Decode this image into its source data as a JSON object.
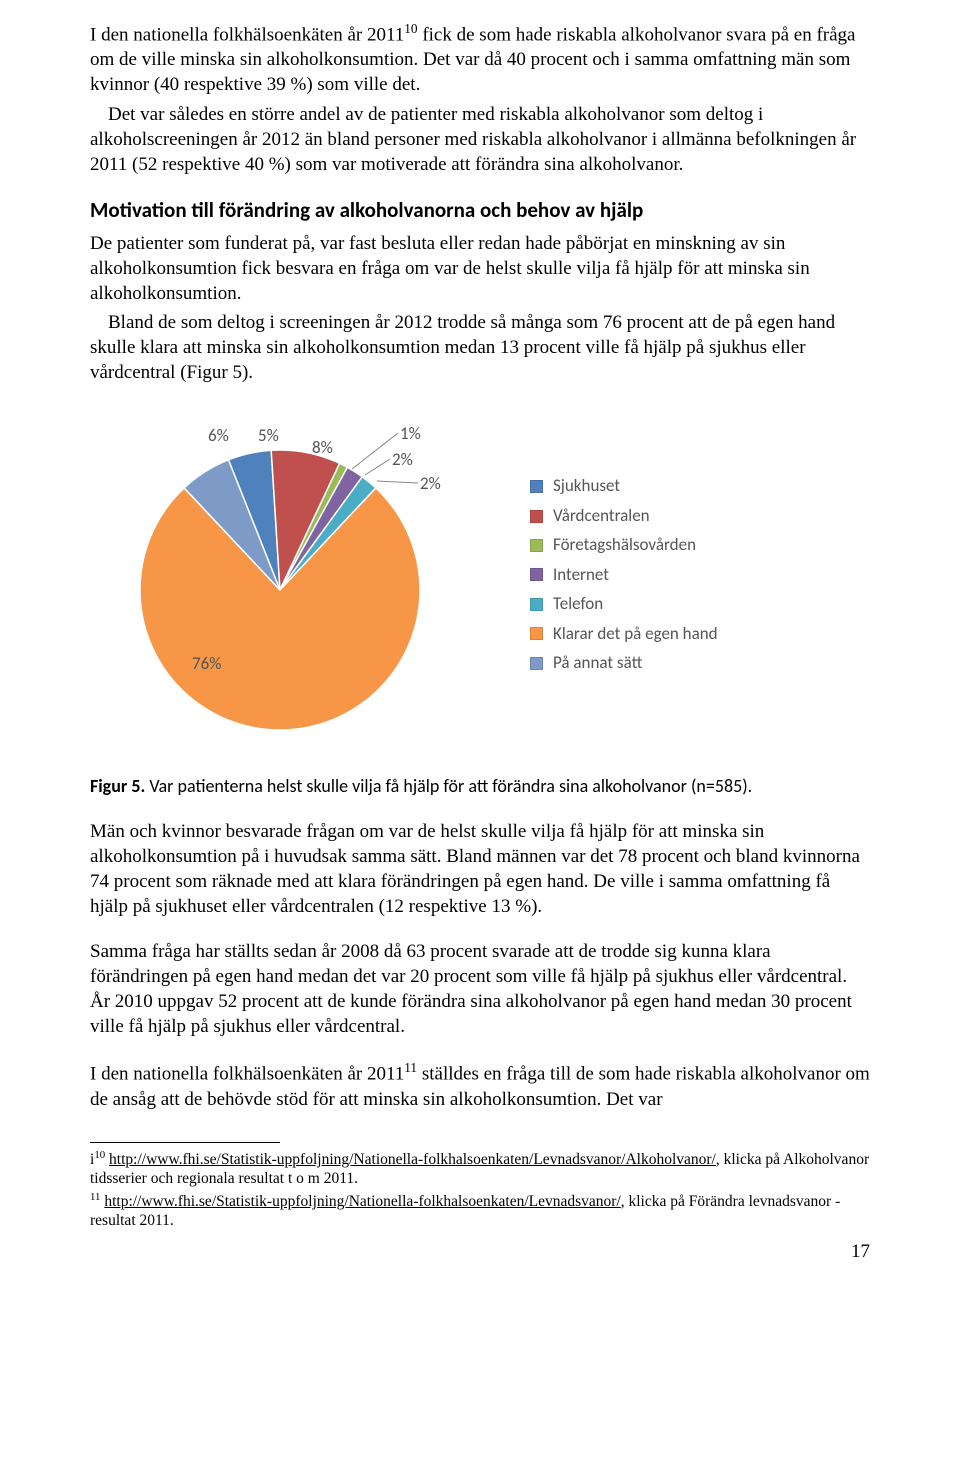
{
  "para1": "I den nationella folkhälsoenkäten år 2011",
  "fn1_sup": "10",
  "para1_cont": " fick de som hade riskabla alkoholvanor svara på en fråga om de ville minska sin alkoholkonsumtion. Det var då 40 procent och i samma omfattning män som kvinnor (40 respektive 39 %) som ville det.",
  "para2": "Det var således en större andel av de patienter med riskabla alkoholvanor som deltog i alkoholscreeningen år 2012 än bland personer med riskabla alkoholvanor i allmänna befolkningen år 2011 (52 respektive 40 %) som var motiverade att förändra sina alkoholvanor.",
  "heading": "Motivation till förändring av alkoholvanorna och behov av hjälp",
  "para3": "De patienter som funderat på, var fast besluta eller redan hade påbörjat en minskning av sin alkoholkonsumtion fick besvara en fråga om var de helst skulle vilja få hjälp för att minska sin alkoholkonsumtion.",
  "para4": "Bland de som deltog i screeningen år 2012 trodde så många som 76 procent att de på egen hand skulle klara att minska sin alkoholkonsumtion medan 13 procent ville få hjälp på sjukhus eller vårdcentral (Figur 5).",
  "chart": {
    "type": "pie",
    "size": 280,
    "categories": [
      "Sjukhuset",
      "Vårdcentralen",
      "Företagshälsovården",
      "Internet",
      "Telefon",
      "Klarar det på egen hand",
      "På annat sätt"
    ],
    "values": [
      5,
      8,
      1,
      2,
      2,
      76,
      6
    ],
    "colors": [
      "#4f81bd",
      "#c0504d",
      "#9bbb59",
      "#8064a2",
      "#4bacc6",
      "#f79646",
      "#7e9bc8"
    ],
    "label_texts": [
      "5%",
      "8%",
      "1%",
      "2%",
      "2%",
      "76%",
      "6%"
    ],
    "label_fontsize": 17,
    "label_color": "#595959",
    "legend_fontsize": 17
  },
  "caption_bold": "Figur 5.",
  "caption_rest": " Var patienterna helst skulle vilja få hjälp för att förändra sina alkoholvanor (n=585).",
  "para5": "Män och kvinnor besvarade frågan om var de helst skulle vilja få hjälp för att minska sin alkoholkonsumtion på i huvudsak samma sätt. Bland männen var det 78 procent och bland kvinnorna 74 procent som räknade med att klara förändringen på egen hand. De ville i samma omfattning få hjälp på sjukhuset eller vårdcentralen (12 respektive 13 %).",
  "para6": "Samma fråga har ställts sedan år 2008 då 63 procent svarade att de trodde sig kunna klara förändringen på egen hand medan det var 20 procent som ville få hjälp på sjukhus eller vårdcentral. År 2010 uppgav 52 procent att de kunde förändra sina alkoholvanor på egen hand medan 30 procent ville få hjälp på sjukhus eller vårdcentral.",
  "para7a": "I den nationella folkhälsoenkäten år 2011",
  "fn2_sup": "11",
  "para7b": " ställdes en fråga till de som hade riskabla alkoholvanor om de ansåg att de behövde stöd för att minska sin alkoholkonsumtion. Det var",
  "footnote1_pre": "i",
  "footnote1_sup": "10",
  "footnote1_link": "http://www.fhi.se/Statistik-uppfoljning/Nationella-folkhalsoenkaten/Levnadsvanor/Alkoholvanor/",
  "footnote1_post": ", klicka på Alkoholvanor tidsserier och regionala resultat t o m 2011.",
  "footnote2_sup": "11",
  "footnote2_link": "http://www.fhi.se/Statistik-uppfoljning/Nationella-folkhalsoenkaten/Levnadsvanor/",
  "footnote2_post": ", klicka på Förändra levnadsvanor - resultat 2011.",
  "pagenum": "17"
}
